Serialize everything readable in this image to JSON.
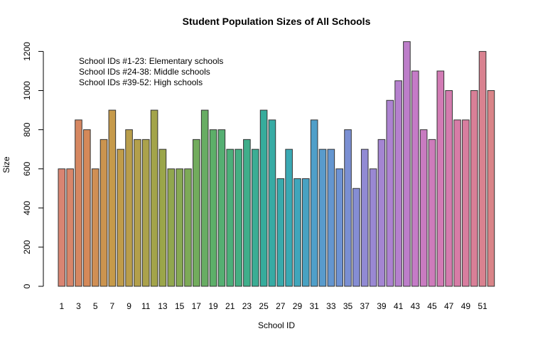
{
  "chart_data": {
    "type": "bar",
    "title": "Student Population Sizes of All Schools",
    "xlabel": "School ID",
    "ylabel": "Size",
    "ylim": [
      0,
      1250
    ],
    "y_ticks": [
      0,
      200,
      400,
      600,
      800,
      1000,
      1200
    ],
    "categories": [
      1,
      2,
      3,
      4,
      5,
      6,
      7,
      8,
      9,
      10,
      11,
      12,
      13,
      14,
      15,
      16,
      17,
      18,
      19,
      20,
      21,
      22,
      23,
      24,
      25,
      26,
      27,
      28,
      29,
      30,
      31,
      32,
      33,
      34,
      35,
      36,
      37,
      38,
      39,
      40,
      41,
      42,
      43,
      44,
      45,
      46,
      47,
      48,
      49,
      50,
      51,
      52
    ],
    "x_tick_labels": [
      "1",
      "3",
      "5",
      "7",
      "9",
      "11",
      "13",
      "15",
      "17",
      "19",
      "21",
      "23",
      "25",
      "27",
      "29",
      "31",
      "33",
      "35",
      "37",
      "39",
      "41",
      "43",
      "45",
      "47",
      "49",
      "51"
    ],
    "values": [
      600,
      600,
      850,
      800,
      600,
      750,
      900,
      700,
      800,
      750,
      750,
      900,
      700,
      600,
      600,
      600,
      750,
      900,
      800,
      800,
      700,
      700,
      750,
      700,
      900,
      850,
      550,
      700,
      550,
      550,
      850,
      700,
      700,
      600,
      800,
      500,
      700,
      600,
      750,
      950,
      1050,
      1250,
      1100,
      800,
      750,
      1100,
      1000,
      850,
      850,
      1000,
      1200,
      1000
    ],
    "annotations": [
      "School IDs #1-23: Elementary schools",
      "School IDs #24-38: Middle schools",
      "School IDs #39-52: High schools"
    ],
    "colors": [
      "#d98472",
      "#d58959",
      "#c69a4a",
      "#b3a04b",
      "#9ba64a",
      "#7daa57",
      "#5daf69",
      "#44af83",
      "#36ac9c",
      "#3aa9b4",
      "#4f9fc9",
      "#6e92d3",
      "#918ad4",
      "#ad83d1",
      "#c57bc7",
      "#d27bb5",
      "#d97d9f",
      "#d98488"
    ],
    "grid": false,
    "legend": "none"
  }
}
